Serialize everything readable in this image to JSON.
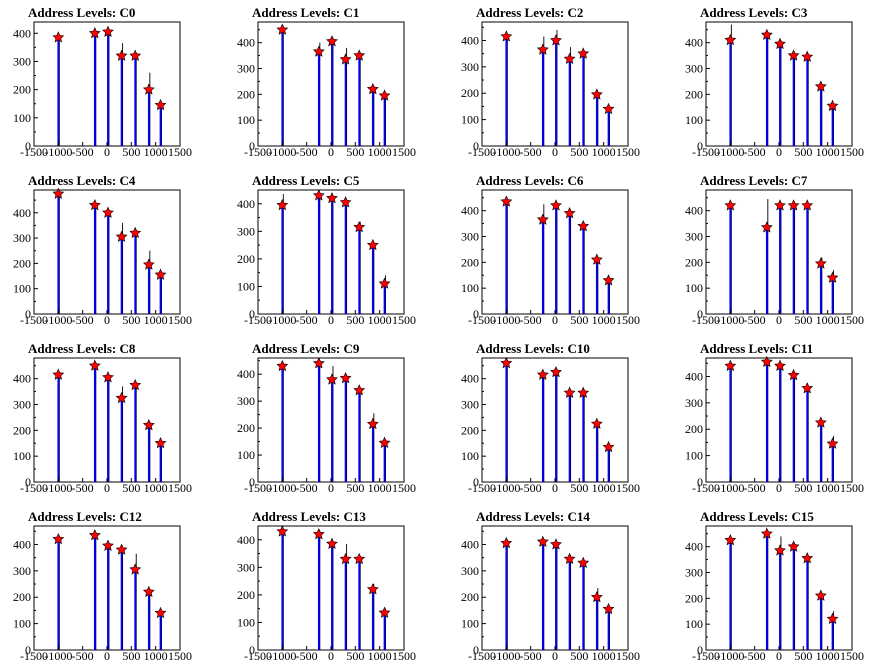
{
  "chart_data": {
    "type": "histogram",
    "colors": {
      "bars": "#0000ff",
      "raw": "#000000",
      "markers": "#ff0000",
      "frame": "#000000"
    },
    "xlim": [
      -1500,
      1500
    ],
    "x_ticks": [
      -1500,
      -1000,
      -500,
      0,
      500,
      1000,
      1500
    ],
    "x_tick_labels": [
      "-1500",
      "-1000",
      "-500",
      "0",
      "500",
      "1000",
      "1500"
    ],
    "panels": [
      {
        "title": "Address Levels: C0",
        "ylim": [
          0,
          440
        ],
        "y_ticks": [
          0,
          100,
          200,
          300,
          400
        ],
        "y_tick_labels": [
          "0",
          "100",
          "200",
          "300",
          "400"
        ],
        "peaks": [
          {
            "x": -1000,
            "y": 385,
            "raw": 385
          },
          {
            "x": -250,
            "y": 400,
            "raw": 400
          },
          {
            "x": 20,
            "y": 405,
            "raw": 410
          },
          {
            "x": 300,
            "y": 320,
            "raw": 365
          },
          {
            "x": 580,
            "y": 320,
            "raw": 330
          },
          {
            "x": 860,
            "y": 200,
            "raw": 260
          },
          {
            "x": 1100,
            "y": 145,
            "raw": 155
          }
        ]
      },
      {
        "title": "Address Levels: C1",
        "ylim": [
          0,
          480
        ],
        "y_ticks": [
          0,
          100,
          200,
          300,
          400
        ],
        "y_tick_labels": [
          "0",
          "100",
          "200",
          "300",
          "400"
        ],
        "peaks": [
          {
            "x": -1000,
            "y": 450,
            "raw": 450
          },
          {
            "x": -250,
            "y": 365,
            "raw": 400
          },
          {
            "x": 20,
            "y": 405,
            "raw": 420
          },
          {
            "x": 300,
            "y": 335,
            "raw": 380
          },
          {
            "x": 580,
            "y": 350,
            "raw": 360
          },
          {
            "x": 860,
            "y": 220,
            "raw": 225
          },
          {
            "x": 1100,
            "y": 195,
            "raw": 200
          }
        ]
      },
      {
        "title": "Address Levels: C2",
        "ylim": [
          0,
          470
        ],
        "y_ticks": [
          0,
          100,
          200,
          300,
          400
        ],
        "y_tick_labels": [
          "0",
          "100",
          "200",
          "300",
          "400"
        ],
        "peaks": [
          {
            "x": -1000,
            "y": 415,
            "raw": 415
          },
          {
            "x": -250,
            "y": 365,
            "raw": 415
          },
          {
            "x": 20,
            "y": 400,
            "raw": 440
          },
          {
            "x": 300,
            "y": 330,
            "raw": 375
          },
          {
            "x": 580,
            "y": 350,
            "raw": 360
          },
          {
            "x": 860,
            "y": 195,
            "raw": 205
          },
          {
            "x": 1100,
            "y": 140,
            "raw": 150
          }
        ]
      },
      {
        "title": "Address Levels: C3",
        "ylim": [
          0,
          480
        ],
        "y_ticks": [
          0,
          100,
          200,
          300,
          400
        ],
        "y_tick_labels": [
          "0",
          "100",
          "200",
          "300",
          "400"
        ],
        "peaks": [
          {
            "x": -1000,
            "y": 410,
            "raw": 470
          },
          {
            "x": -250,
            "y": 430,
            "raw": 440
          },
          {
            "x": 20,
            "y": 395,
            "raw": 410
          },
          {
            "x": 300,
            "y": 350,
            "raw": 355
          },
          {
            "x": 580,
            "y": 345,
            "raw": 350
          },
          {
            "x": 860,
            "y": 230,
            "raw": 240
          },
          {
            "x": 1100,
            "y": 155,
            "raw": 160
          }
        ]
      },
      {
        "title": "Address Levels: C4",
        "ylim": [
          0,
          490
        ],
        "y_ticks": [
          0,
          100,
          200,
          300,
          400
        ],
        "y_tick_labels": [
          "0",
          "100",
          "200",
          "300",
          "400"
        ],
        "peaks": [
          {
            "x": -1000,
            "y": 475,
            "raw": 475
          },
          {
            "x": -250,
            "y": 430,
            "raw": 430
          },
          {
            "x": 20,
            "y": 400,
            "raw": 410
          },
          {
            "x": 300,
            "y": 305,
            "raw": 360
          },
          {
            "x": 580,
            "y": 320,
            "raw": 330
          },
          {
            "x": 860,
            "y": 195,
            "raw": 250
          },
          {
            "x": 1100,
            "y": 155,
            "raw": 165
          }
        ]
      },
      {
        "title": "Address Levels: C5",
        "ylim": [
          0,
          450
        ],
        "y_ticks": [
          0,
          100,
          200,
          300,
          400
        ],
        "y_tick_labels": [
          "0",
          "100",
          "200",
          "300",
          "400"
        ],
        "peaks": [
          {
            "x": -1000,
            "y": 395,
            "raw": 435
          },
          {
            "x": -250,
            "y": 430,
            "raw": 435
          },
          {
            "x": 20,
            "y": 420,
            "raw": 425
          },
          {
            "x": 300,
            "y": 405,
            "raw": 410
          },
          {
            "x": 580,
            "y": 315,
            "raw": 335
          },
          {
            "x": 860,
            "y": 250,
            "raw": 255
          },
          {
            "x": 1100,
            "y": 110,
            "raw": 140
          }
        ]
      },
      {
        "title": "Address Levels: C6",
        "ylim": [
          0,
          480
        ],
        "y_ticks": [
          0,
          100,
          200,
          300,
          400
        ],
        "y_tick_labels": [
          "0",
          "100",
          "200",
          "300",
          "400"
        ],
        "peaks": [
          {
            "x": -1000,
            "y": 435,
            "raw": 440
          },
          {
            "x": -250,
            "y": 365,
            "raw": 425
          },
          {
            "x": 20,
            "y": 420,
            "raw": 430
          },
          {
            "x": 300,
            "y": 390,
            "raw": 395
          },
          {
            "x": 580,
            "y": 340,
            "raw": 345
          },
          {
            "x": 860,
            "y": 210,
            "raw": 220
          },
          {
            "x": 1100,
            "y": 130,
            "raw": 140
          }
        ]
      },
      {
        "title": "Address Levels: C7",
        "ylim": [
          0,
          480
        ],
        "y_ticks": [
          0,
          100,
          200,
          300,
          400
        ],
        "y_tick_labels": [
          "0",
          "100",
          "200",
          "300",
          "400"
        ],
        "peaks": [
          {
            "x": -1000,
            "y": 420,
            "raw": 425
          },
          {
            "x": -250,
            "y": 335,
            "raw": 445
          },
          {
            "x": 20,
            "y": 420,
            "raw": 425
          },
          {
            "x": 300,
            "y": 420,
            "raw": 425
          },
          {
            "x": 580,
            "y": 420,
            "raw": 425
          },
          {
            "x": 860,
            "y": 195,
            "raw": 220
          },
          {
            "x": 1100,
            "y": 140,
            "raw": 170
          }
        ]
      },
      {
        "title": "Address Levels: C8",
        "ylim": [
          0,
          480
        ],
        "y_ticks": [
          0,
          100,
          200,
          300,
          400
        ],
        "y_tick_labels": [
          "0",
          "100",
          "200",
          "300",
          "400"
        ],
        "peaks": [
          {
            "x": -1000,
            "y": 415,
            "raw": 420
          },
          {
            "x": -250,
            "y": 450,
            "raw": 455
          },
          {
            "x": 20,
            "y": 405,
            "raw": 410
          },
          {
            "x": 300,
            "y": 325,
            "raw": 370
          },
          {
            "x": 580,
            "y": 375,
            "raw": 380
          },
          {
            "x": 860,
            "y": 220,
            "raw": 225
          },
          {
            "x": 1100,
            "y": 150,
            "raw": 160
          }
        ]
      },
      {
        "title": "Address Levels: C9",
        "ylim": [
          0,
          460
        ],
        "y_ticks": [
          0,
          100,
          200,
          300,
          400
        ],
        "y_tick_labels": [
          "0",
          "100",
          "200",
          "300",
          "400"
        ],
        "peaks": [
          {
            "x": -1000,
            "y": 430,
            "raw": 440
          },
          {
            "x": -250,
            "y": 440,
            "raw": 445
          },
          {
            "x": 20,
            "y": 380,
            "raw": 430
          },
          {
            "x": 300,
            "y": 385,
            "raw": 390
          },
          {
            "x": 580,
            "y": 340,
            "raw": 345
          },
          {
            "x": 860,
            "y": 215,
            "raw": 255
          },
          {
            "x": 1100,
            "y": 145,
            "raw": 150
          }
        ]
      },
      {
        "title": "Address Levels: C10",
        "ylim": [
          0,
          480
        ],
        "y_ticks": [
          0,
          100,
          200,
          300,
          400
        ],
        "y_tick_labels": [
          "0",
          "100",
          "200",
          "300",
          "400"
        ],
        "peaks": [
          {
            "x": -1000,
            "y": 460,
            "raw": 465
          },
          {
            "x": -250,
            "y": 415,
            "raw": 420
          },
          {
            "x": 20,
            "y": 425,
            "raw": 430
          },
          {
            "x": 300,
            "y": 345,
            "raw": 355
          },
          {
            "x": 580,
            "y": 345,
            "raw": 355
          },
          {
            "x": 860,
            "y": 225,
            "raw": 230
          },
          {
            "x": 1100,
            "y": 135,
            "raw": 140
          }
        ]
      },
      {
        "title": "Address Levels: C11",
        "ylim": [
          0,
          470
        ],
        "y_ticks": [
          0,
          100,
          200,
          300,
          400
        ],
        "y_tick_labels": [
          "0",
          "100",
          "200",
          "300",
          "400"
        ],
        "peaks": [
          {
            "x": -1000,
            "y": 440,
            "raw": 445
          },
          {
            "x": -250,
            "y": 455,
            "raw": 460
          },
          {
            "x": 20,
            "y": 440,
            "raw": 445
          },
          {
            "x": 300,
            "y": 405,
            "raw": 410
          },
          {
            "x": 580,
            "y": 355,
            "raw": 360
          },
          {
            "x": 860,
            "y": 225,
            "raw": 230
          },
          {
            "x": 1100,
            "y": 145,
            "raw": 175
          }
        ]
      },
      {
        "title": "Address Levels: C12",
        "ylim": [
          0,
          470
        ],
        "y_ticks": [
          0,
          100,
          200,
          300,
          400
        ],
        "y_tick_labels": [
          "0",
          "100",
          "200",
          "300",
          "400"
        ],
        "peaks": [
          {
            "x": -1000,
            "y": 420,
            "raw": 425
          },
          {
            "x": -250,
            "y": 435,
            "raw": 440
          },
          {
            "x": 20,
            "y": 395,
            "raw": 400
          },
          {
            "x": 300,
            "y": 380,
            "raw": 385
          },
          {
            "x": 580,
            "y": 305,
            "raw": 365
          },
          {
            "x": 860,
            "y": 220,
            "raw": 225
          },
          {
            "x": 1100,
            "y": 140,
            "raw": 145
          }
        ]
      },
      {
        "title": "Address Levels: C13",
        "ylim": [
          0,
          450
        ],
        "y_ticks": [
          0,
          100,
          200,
          300,
          400
        ],
        "y_tick_labels": [
          "0",
          "100",
          "200",
          "300",
          "400"
        ],
        "peaks": [
          {
            "x": -1000,
            "y": 430,
            "raw": 435
          },
          {
            "x": -250,
            "y": 420,
            "raw": 425
          },
          {
            "x": 20,
            "y": 385,
            "raw": 390
          },
          {
            "x": 300,
            "y": 330,
            "raw": 385
          },
          {
            "x": 580,
            "y": 330,
            "raw": 335
          },
          {
            "x": 860,
            "y": 220,
            "raw": 240
          },
          {
            "x": 1100,
            "y": 135,
            "raw": 150
          }
        ]
      },
      {
        "title": "Address Levels: C14",
        "ylim": [
          0,
          470
        ],
        "y_ticks": [
          0,
          100,
          200,
          300,
          400
        ],
        "y_tick_labels": [
          "0",
          "100",
          "200",
          "300",
          "400"
        ],
        "peaks": [
          {
            "x": -1000,
            "y": 405,
            "raw": 410
          },
          {
            "x": -250,
            "y": 410,
            "raw": 420
          },
          {
            "x": 20,
            "y": 400,
            "raw": 410
          },
          {
            "x": 300,
            "y": 345,
            "raw": 360
          },
          {
            "x": 580,
            "y": 330,
            "raw": 340
          },
          {
            "x": 860,
            "y": 200,
            "raw": 235
          },
          {
            "x": 1100,
            "y": 155,
            "raw": 160
          }
        ]
      },
      {
        "title": "Address Levels: C15",
        "ylim": [
          0,
          480
        ],
        "y_ticks": [
          0,
          100,
          200,
          300,
          400
        ],
        "y_tick_labels": [
          "0",
          "100",
          "200",
          "300",
          "400"
        ],
        "peaks": [
          {
            "x": -1000,
            "y": 425,
            "raw": 430
          },
          {
            "x": -250,
            "y": 450,
            "raw": 455
          },
          {
            "x": 20,
            "y": 385,
            "raw": 440
          },
          {
            "x": 300,
            "y": 400,
            "raw": 410
          },
          {
            "x": 580,
            "y": 355,
            "raw": 365
          },
          {
            "x": 860,
            "y": 210,
            "raw": 220
          },
          {
            "x": 1100,
            "y": 120,
            "raw": 150
          }
        ]
      }
    ]
  }
}
